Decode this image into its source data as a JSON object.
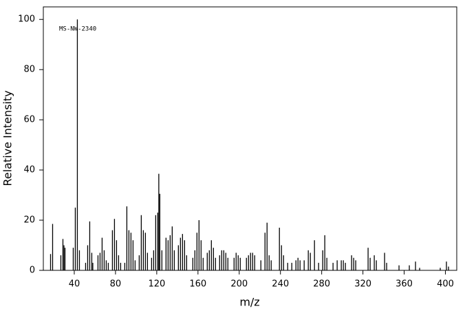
{
  "chart_data": {
    "type": "stem",
    "annotation": "MS-NW-2340",
    "xlabel": "m/z",
    "ylabel": "Relative Intensity",
    "color": "#000000",
    "xlim": [
      10,
      411
    ],
    "ylim": [
      0,
      105
    ],
    "xticks": [
      40,
      80,
      120,
      160,
      200,
      240,
      280,
      320,
      360,
      400
    ],
    "yticks": [
      0,
      20,
      40,
      60,
      80,
      100
    ],
    "x": [
      17,
      19,
      27,
      29,
      30,
      31,
      39,
      41,
      43,
      45,
      51,
      53,
      55,
      57,
      58,
      63,
      65,
      67,
      69,
      71,
      73,
      77,
      79,
      81,
      83,
      85,
      89,
      91,
      93,
      95,
      97,
      99,
      103,
      105,
      107,
      109,
      111,
      115,
      117,
      119,
      121,
      122,
      123,
      125,
      129,
      131,
      133,
      135,
      137,
      141,
      143,
      145,
      147,
      149,
      155,
      157,
      159,
      161,
      163,
      165,
      169,
      171,
      173,
      175,
      177,
      181,
      183,
      185,
      187,
      189,
      195,
      197,
      199,
      201,
      207,
      209,
      211,
      213,
      215,
      221,
      225,
      227,
      229,
      231,
      239,
      241,
      243,
      247,
      251,
      255,
      257,
      259,
      263,
      267,
      269,
      273,
      277,
      281,
      283,
      285,
      291,
      295,
      299,
      301,
      303,
      309,
      311,
      313,
      325,
      327,
      331,
      333,
      341,
      343,
      355,
      365,
      371,
      375,
      395,
      401,
      403
    ],
    "values": [
      6.5,
      18.5,
      6,
      12.5,
      10,
      9,
      9,
      25,
      100,
      8,
      3,
      10,
      19.5,
      7,
      3,
      6,
      7,
      13,
      8,
      4,
      3,
      16,
      20.5,
      12,
      6,
      3,
      3,
      25.5,
      16,
      15,
      12,
      4,
      6,
      22,
      16,
      15,
      7,
      5,
      8,
      22,
      23,
      38.5,
      30.5,
      8,
      13,
      12,
      14,
      17.5,
      8,
      10,
      13,
      14.5,
      12,
      6,
      5,
      8,
      15,
      20,
      12,
      5,
      7,
      8,
      12,
      9,
      5,
      6,
      8,
      8,
      7,
      5,
      5,
      7,
      6,
      5,
      5,
      6,
      7,
      7,
      6,
      4,
      15,
      19,
      6,
      4,
      17,
      10,
      6,
      3,
      3,
      4,
      5,
      4,
      4,
      8,
      7,
      12,
      3,
      8,
      14,
      5,
      3,
      4,
      4,
      4,
      3,
      6,
      5,
      4,
      9,
      5,
      6,
      4,
      7,
      3,
      2,
      2,
      3.5,
      1,
      1,
      3.5,
      1.5
    ]
  }
}
